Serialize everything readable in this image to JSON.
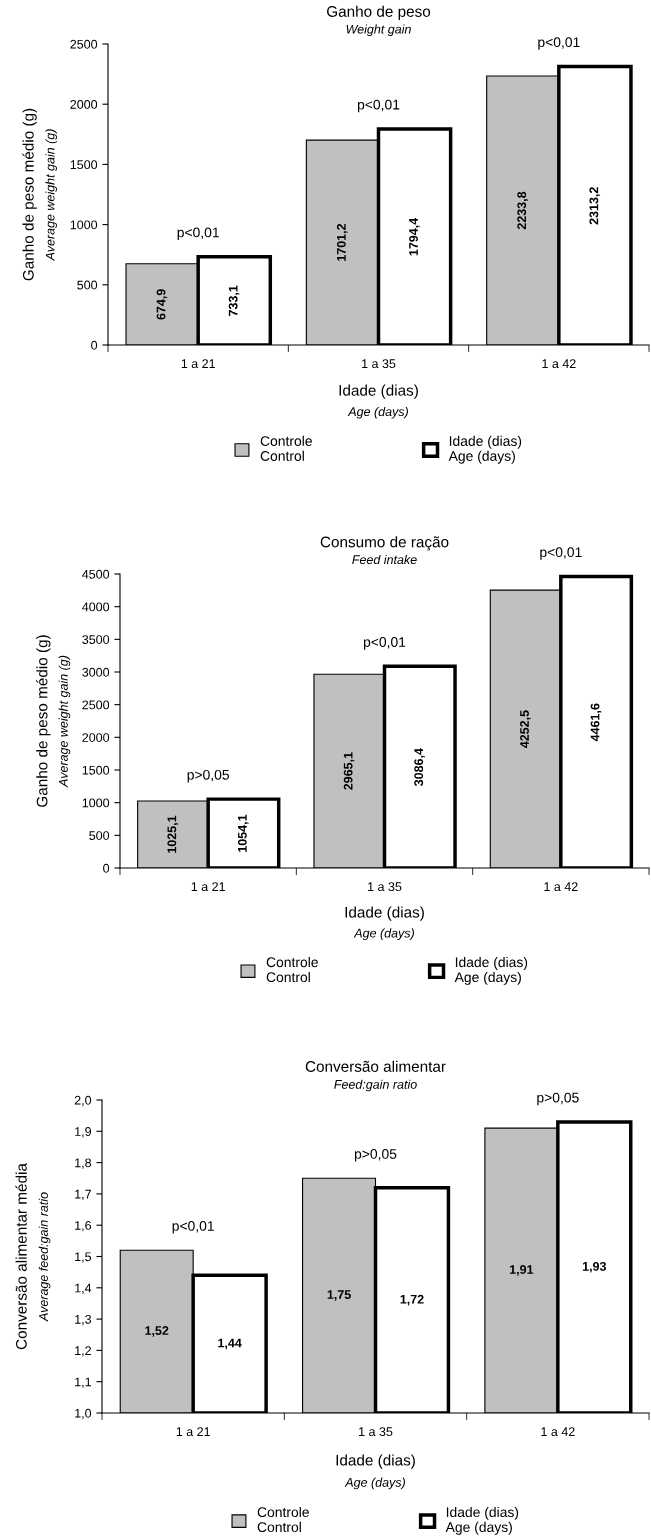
{
  "chart_data": [
    {
      "type": "bar",
      "title": "Ganho de peso",
      "subtitle": "Weight gain",
      "xlabel": "Idade (dias)\nAge (days)",
      "ylabel": "Ganho de peso médio (g)\nAverage weight gain (g)",
      "categories": [
        "1 a 21",
        "1 a 35",
        "1 a 42"
      ],
      "series": [
        {
          "name": "Controle\nControl",
          "color": "#c0c0c0",
          "values": [
            674.9,
            1701.2,
            2233.8
          ],
          "value_labels": [
            "674,9",
            "1701,2",
            "2233,8"
          ]
        },
        {
          "name": "Idade (dias)\nAge (days)",
          "color": "#ffffff",
          "values": [
            733.1,
            1794.4,
            2313.2
          ],
          "value_labels": [
            "733,1",
            "1794,4",
            "2313,2"
          ]
        }
      ],
      "ylim": [
        0,
        2500
      ],
      "yticks": [
        0,
        500,
        1000,
        1500,
        2000,
        2500
      ],
      "legend": "bottom",
      "annotations": [
        {
          "text": "p<0,01",
          "x": "1 a 21",
          "y": 733.1
        },
        {
          "text": "p<0,01",
          "x": "1 a 35",
          "y": 1794.4
        },
        {
          "text": "p<0,01",
          "x": "1 a 42",
          "y": 2313.2
        }
      ]
    },
    {
      "type": "bar",
      "title": "Consumo de ração",
      "subtitle": "Feed intake",
      "xlabel": "Idade (dias)\nAge (days)",
      "ylabel": "Ganho de peso médio (g)\nAverage weight gain (g)",
      "categories": [
        "1 a 21",
        "1 a 35",
        "1 a 42"
      ],
      "series": [
        {
          "name": "Controle\nControl",
          "color": "#c0c0c0",
          "values": [
            1025.1,
            2965.1,
            4252.5
          ],
          "value_labels": [
            "1025,1",
            "2965,1",
            "4252,5"
          ]
        },
        {
          "name": "Idade (dias)\nAge (days)",
          "color": "#ffffff",
          "values": [
            1054.1,
            3086.4,
            4461.6
          ],
          "value_labels": [
            "1054,1",
            "3086,4",
            "4461,6"
          ]
        }
      ],
      "ylim": [
        0,
        4500
      ],
      "yticks": [
        0,
        500,
        1000,
        1500,
        2000,
        2500,
        3000,
        3500,
        4000,
        4500
      ],
      "legend": "bottom",
      "annotations": [
        {
          "text": "p>0,05",
          "x": "1 a 21",
          "y": 1054.1
        },
        {
          "text": "p<0,01",
          "x": "1 a 35",
          "y": 3086.4
        },
        {
          "text": "p<0,01",
          "x": "1 a 42",
          "y": 4461.6
        }
      ]
    },
    {
      "type": "bar",
      "title": "Conversão alimentar",
      "subtitle": "Feed:gain ratio",
      "xlabel": "Idade (dias)\nAge (days)",
      "ylabel": "Conversão alimentar média\nAverage feed:gain ratio",
      "categories": [
        "1 a 21",
        "1 a 35",
        "1 a 42"
      ],
      "series": [
        {
          "name": "Controle\nControl",
          "color": "#c0c0c0",
          "values": [
            1.52,
            1.75,
            1.91
          ],
          "value_labels": [
            "1,52",
            "1,75",
            "1,91"
          ]
        },
        {
          "name": "Idade (dias)\nAge (days)",
          "color": "#ffffff",
          "values": [
            1.44,
            1.72,
            1.93
          ],
          "value_labels": [
            "1,44",
            "1,72",
            "1,93"
          ]
        }
      ],
      "ylim": [
        1.0,
        2.0
      ],
      "yticks": [
        {
          "value": 1.0,
          "label": "1,0"
        },
        {
          "value": 1.1,
          "label": "1,1"
        },
        {
          "value": 1.2,
          "label": "1,2"
        },
        {
          "value": 1.3,
          "label": "1,3"
        },
        {
          "value": 1.4,
          "label": "1,4"
        },
        {
          "value": 1.5,
          "label": "1,5"
        },
        {
          "value": 1.6,
          "label": "1,6"
        },
        {
          "value": 1.7,
          "label": "1,7"
        },
        {
          "value": 1.8,
          "label": "1,8"
        },
        {
          "value": 1.9,
          "label": "1,9"
        },
        {
          "value": 2.0,
          "label": "2,0"
        }
      ],
      "legend": "bottom",
      "annotations": [
        {
          "text": "p<0,01",
          "x": "1 a 21",
          "y": 1.52
        },
        {
          "text": "p>0,05",
          "x": "1 a 35",
          "y": 1.75
        },
        {
          "text": "p>0,05",
          "x": "1 a 42",
          "y": 1.93
        }
      ]
    }
  ]
}
